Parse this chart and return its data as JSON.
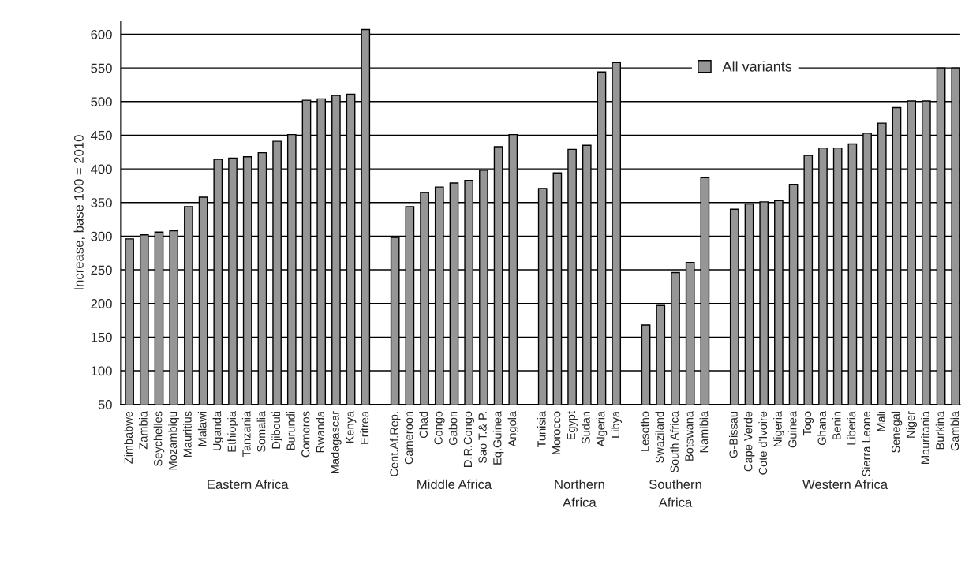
{
  "chart_data": {
    "type": "bar",
    "ylabel": "Increase, base 100 = 2010",
    "categories": [
      "Zimbabwe",
      "Zambia",
      "Seychelles",
      "Mozambiqu",
      "Mauritius",
      "Malawi",
      "Uganda",
      "Ethiopia",
      "Tanzania",
      "Somalia",
      "Djibouti",
      "Burundi",
      "Comoros",
      "Rwanda",
      "Madagascar",
      "Kenya",
      "Eritrea",
      null,
      "Cent.Af.Rep.",
      "Cameroon",
      "Chad",
      "Congo",
      "Gabon",
      "D.R.Congo",
      "Sao T.& P.",
      "Eq.Guinea",
      "Angola",
      null,
      "Tunisia",
      "Morocco",
      "Egypt",
      "Sudan",
      "Algeria",
      "Libya",
      null,
      "Lesotho",
      "Swaziland",
      "South Africa",
      "Botswana",
      "Namibia",
      null,
      "G-Bissau",
      "Cape Verde",
      "Cote d'Ivoire",
      "Nigeria",
      "Guinea",
      "Togo",
      "Ghana",
      "Benin",
      "Liberia",
      "Sierra Leone",
      "Mali",
      "Senegal",
      "Niger",
      "Mauritania",
      "Burkina",
      "Gambia"
    ],
    "series": [
      {
        "name": "All variants",
        "color": "#969696",
        "values": [
          296,
          302,
          306,
          308,
          344,
          358,
          414,
          416,
          418,
          424,
          441,
          451,
          502,
          504,
          509,
          511,
          607,
          null,
          298,
          344,
          365,
          373,
          379,
          383,
          398,
          433,
          451,
          null,
          371,
          394,
          429,
          435,
          544,
          558,
          null,
          168,
          197,
          246,
          261,
          387,
          null,
          340,
          348,
          351,
          353,
          377,
          420,
          431,
          431,
          437,
          453,
          468,
          491,
          501,
          501,
          550,
          550
        ]
      }
    ],
    "ylim": [
      50,
      620
    ],
    "yticks": [
      50,
      100,
      150,
      200,
      250,
      300,
      350,
      400,
      450,
      500,
      550,
      600
    ],
    "grid": "y",
    "legend": "top right",
    "annotations": [
      "Eastern Africa",
      "Middle Africa",
      "Northern\nAfrica",
      "Southern\nAfrica",
      "Western Africa"
    ]
  }
}
